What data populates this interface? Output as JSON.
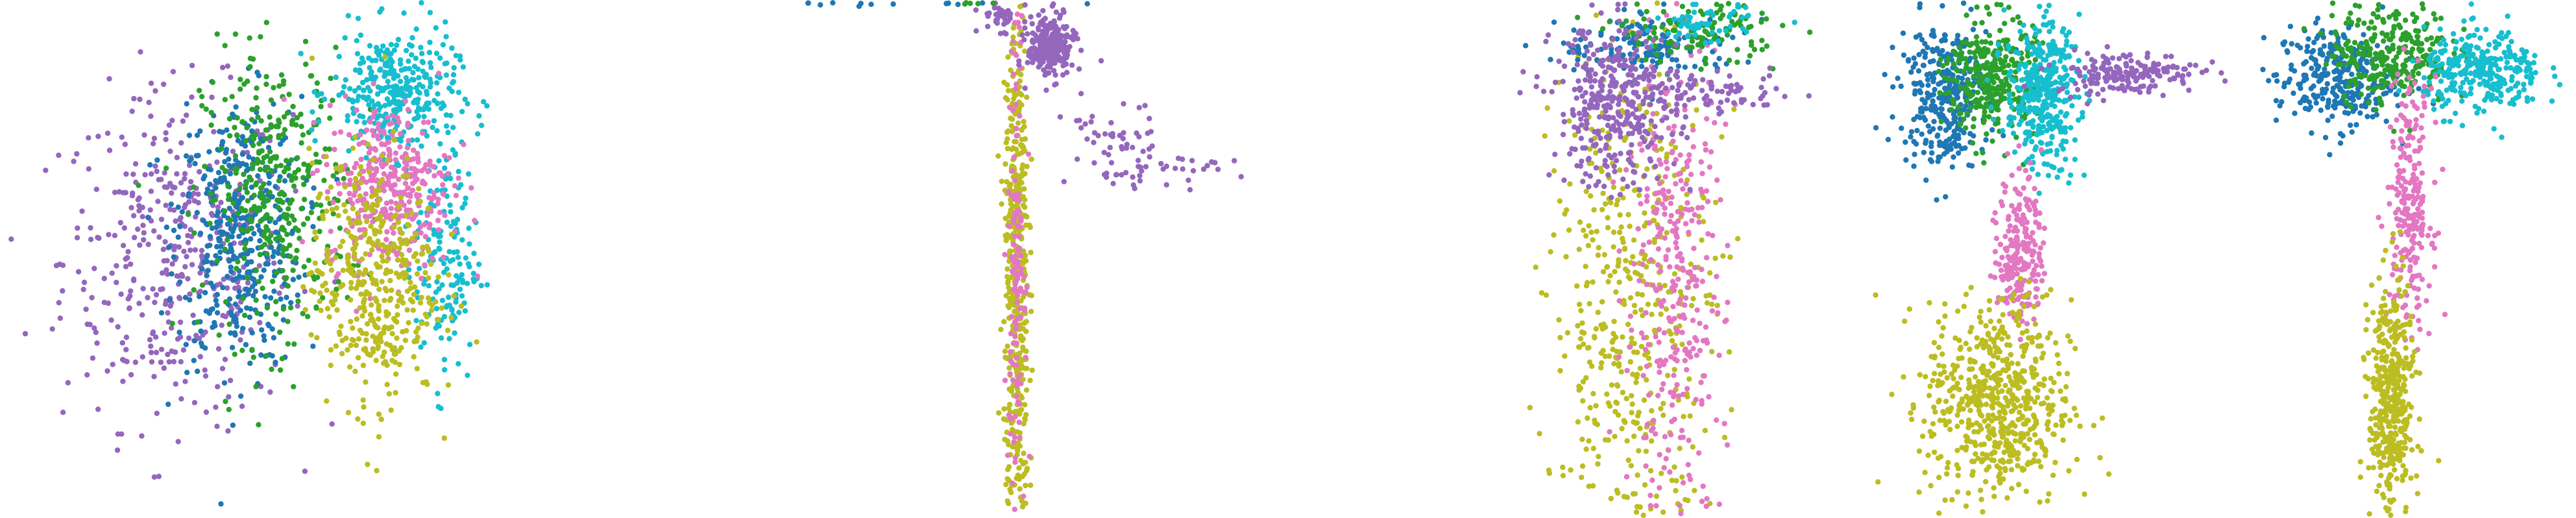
{
  "chart_data": [
    {
      "type": "scatter",
      "title": "",
      "xlabel": "",
      "ylabel": "",
      "grid": false,
      "legend": "none",
      "xlim": [
        0,
        100
      ],
      "ylim": [
        0,
        100
      ],
      "colors": {
        "purple": "#9467bd",
        "blue": "#1f77b4",
        "green": "#2ca02c",
        "cyan": "#17becf",
        "pink": "#e377c2",
        "olive": "#bcbd22"
      },
      "series": [
        {
          "name": "purple",
          "clusters": [
            {
              "cx": 34,
              "cy": 50,
              "sx": 11,
              "sy": 16,
              "n": 420
            }
          ]
        },
        {
          "name": "blue",
          "clusters": [
            {
              "cx": 46,
              "cy": 55,
              "sx": 6,
              "sy": 13,
              "n": 420
            }
          ]
        },
        {
          "name": "green",
          "clusters": [
            {
              "cx": 53,
              "cy": 62,
              "sx": 7,
              "sy": 14,
              "n": 360
            }
          ]
        },
        {
          "name": "cyan",
          "clusters": [
            {
              "cx": 76,
              "cy": 82,
              "sx": 6,
              "sy": 6,
              "n": 340
            },
            {
              "cx": 86,
              "cy": 50,
              "sx": 3,
              "sy": 12,
              "n": 160
            }
          ]
        },
        {
          "name": "pink",
          "clusters": [
            {
              "cx": 75,
              "cy": 64,
              "sx": 6,
              "sy": 8,
              "n": 360
            }
          ]
        },
        {
          "name": "olive",
          "clusters": [
            {
              "cx": 72,
              "cy": 46,
              "sx": 6,
              "sy": 12,
              "n": 420
            }
          ]
        }
      ]
    },
    {
      "type": "scatter",
      "title": "",
      "xlabel": "",
      "ylabel": "",
      "grid": false,
      "legend": "none",
      "xlim": [
        0,
        100
      ],
      "ylim": [
        0,
        100
      ],
      "series": [
        {
          "name": "olive",
          "clusters": [
            {
              "cx": 97,
              "cy": 45,
              "sx": 1.2,
              "sy": 28,
              "n": 500
            }
          ]
        },
        {
          "name": "pink",
          "clusters": [
            {
              "cx": 97,
              "cy": 55,
              "sx": 0.8,
              "sy": 25,
              "n": 140
            }
          ]
        },
        {
          "name": "purple",
          "clusters": [
            {
              "cx": 94,
              "cy": 97,
              "sx": 2,
              "sy": 1.5,
              "n": 40
            }
          ]
        },
        {
          "name": "blue",
          "clusters": [
            {
              "cx": 70,
              "cy": 99.5,
              "sx": 15,
              "sy": 0.3,
              "n": 25
            }
          ]
        },
        {
          "name": "green",
          "clusters": [
            {
              "cx": 90,
              "cy": 99.5,
              "sx": 3,
              "sy": 0.3,
              "n": 15
            }
          ]
        }
      ]
    },
    {
      "type": "scatter",
      "title": "",
      "xlabel": "",
      "ylabel": "",
      "grid": false,
      "legend": "none",
      "xlim": [
        0,
        100
      ],
      "ylim": [
        0,
        100
      ],
      "series": [
        {
          "name": "purple",
          "clusters": [
            {
              "cx": 5,
              "cy": 91,
              "sx": 3,
              "sy": 3,
              "n": 260
            },
            {
              "cx": 20,
              "cy": 72,
              "sx": 6,
              "sy": 4,
              "n": 50
            },
            {
              "cx": 35,
              "cy": 67,
              "sx": 10,
              "sy": 1.5,
              "n": 30
            }
          ]
        }
      ]
    },
    {
      "type": "scatter",
      "title": "",
      "xlabel": "",
      "ylabel": "",
      "grid": false,
      "legend": "none",
      "xlim": [
        0,
        100
      ],
      "ylim": [
        0,
        100
      ],
      "series": [
        {
          "name": "olive",
          "clusters": [
            {
              "cx": 42,
              "cy": 40,
              "sx": 8,
              "sy": 28,
              "n": 520
            }
          ]
        },
        {
          "name": "pink",
          "clusters": [
            {
              "cx": 50,
              "cy": 45,
              "sx": 5,
              "sy": 26,
              "n": 360
            }
          ]
        },
        {
          "name": "blue",
          "clusters": [
            {
              "cx": 45,
              "cy": 91,
              "sx": 9,
              "sy": 3,
              "n": 140
            }
          ]
        },
        {
          "name": "green",
          "clusters": [
            {
              "cx": 55,
              "cy": 94,
              "sx": 8,
              "sy": 3,
              "n": 120
            }
          ]
        },
        {
          "name": "cyan",
          "clusters": [
            {
              "cx": 56,
              "cy": 95,
              "sx": 5,
              "sy": 2,
              "n": 60
            }
          ]
        }
      ]
    },
    {
      "type": "scatter",
      "title": "",
      "xlabel": "",
      "ylabel": "",
      "grid": false,
      "legend": "none",
      "xlim": [
        0,
        100
      ],
      "ylim": [
        0,
        100
      ],
      "series": [
        {
          "name": "purple",
          "clusters": [
            {
              "cx": 20,
              "cy": 80,
              "sx": 8,
              "sy": 8,
              "n": 360
            },
            {
              "cx": 45,
              "cy": 82,
              "sx": 10,
              "sy": 2,
              "n": 80
            }
          ]
        }
      ]
    },
    {
      "type": "scatter",
      "title": "",
      "xlabel": "",
      "ylabel": "",
      "grid": false,
      "legend": "none",
      "xlim": [
        0,
        100
      ],
      "ylim": [
        0,
        100
      ],
      "series": [
        {
          "name": "blue",
          "clusters": [
            {
              "cx": 35,
              "cy": 82,
              "sx": 6,
              "sy": 7,
              "n": 320
            }
          ]
        },
        {
          "name": "green",
          "clusters": [
            {
              "cx": 48,
              "cy": 85,
              "sx": 6,
              "sy": 6,
              "n": 320
            }
          ]
        },
        {
          "name": "cyan",
          "clusters": [
            {
              "cx": 62,
              "cy": 82,
              "sx": 5,
              "sy": 7,
              "n": 380
            }
          ]
        },
        {
          "name": "pink",
          "clusters": [
            {
              "cx": 56,
              "cy": 52,
              "sx": 3,
              "sy": 8,
              "n": 220
            }
          ]
        },
        {
          "name": "olive",
          "clusters": [
            {
              "cx": 50,
              "cy": 22,
              "sx": 10,
              "sy": 10,
              "n": 620
            }
          ]
        },
        {
          "name": "purple",
          "clusters": [
            {
              "cx": 85,
              "cy": 86,
              "sx": 10,
              "sy": 2,
              "n": 180
            }
          ]
        }
      ]
    },
    {
      "type": "scatter",
      "title": "",
      "xlabel": "",
      "ylabel": "",
      "grid": false,
      "legend": "none",
      "xlim": [
        0,
        100
      ],
      "ylim": [
        0,
        100
      ],
      "series": [
        {
          "name": "blue",
          "clusters": [
            {
              "cx": 35,
              "cy": 85,
              "sx": 8,
              "sy": 5,
              "n": 300
            }
          ]
        },
        {
          "name": "green",
          "clusters": [
            {
              "cx": 50,
              "cy": 90,
              "sx": 8,
              "sy": 5,
              "n": 300
            }
          ]
        },
        {
          "name": "cyan",
          "clusters": [
            {
              "cx": 75,
              "cy": 86,
              "sx": 8,
              "sy": 4,
              "n": 300
            }
          ]
        },
        {
          "name": "pink",
          "clusters": [
            {
              "cx": 55,
              "cy": 60,
              "sx": 3,
              "sy": 12,
              "n": 240
            }
          ]
        },
        {
          "name": "olive",
          "clusters": [
            {
              "cx": 50,
              "cy": 22,
              "sx": 3,
              "sy": 12,
              "n": 440
            }
          ]
        }
      ]
    }
  ]
}
